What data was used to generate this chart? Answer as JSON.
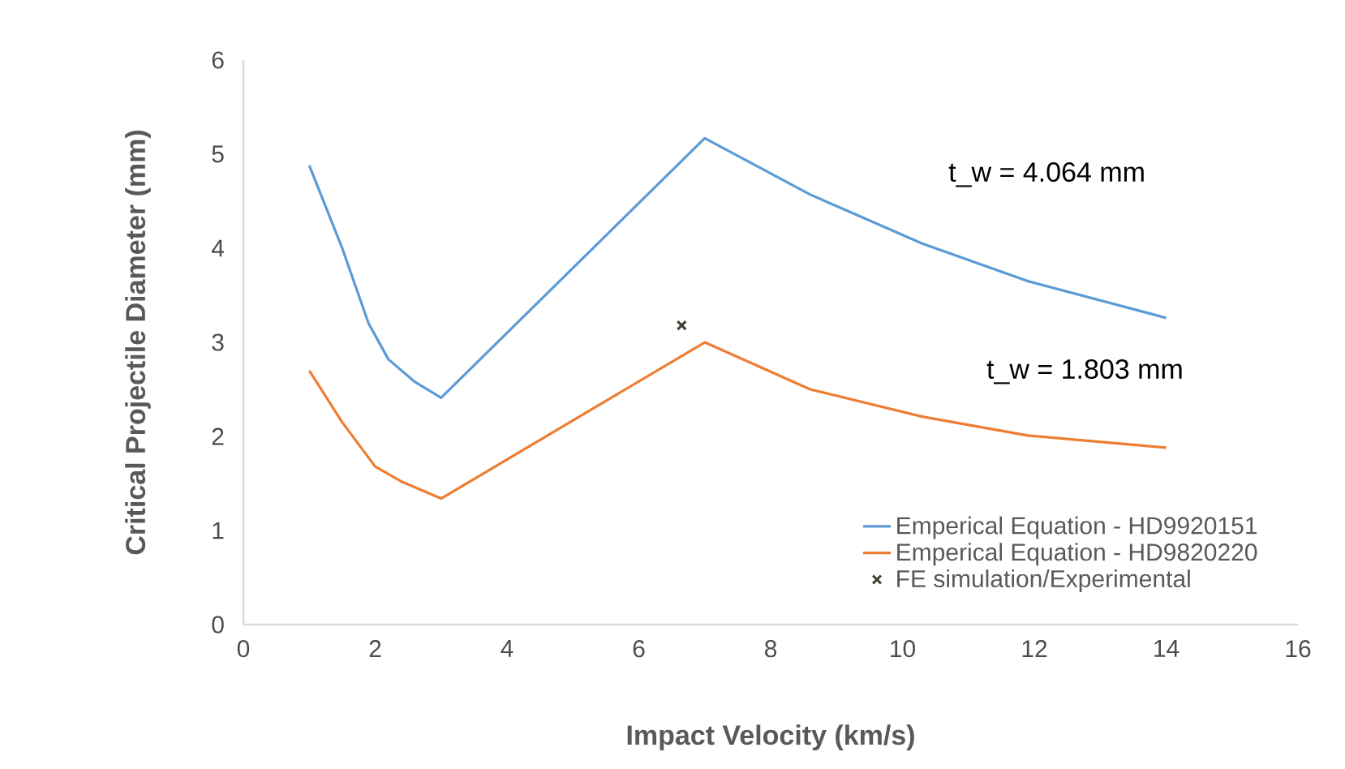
{
  "chart_data": {
    "type": "line",
    "xlabel": "Impact Velocity (km/s)",
    "ylabel": "Critical Projectile Diameter (mm)",
    "xlim": [
      0,
      16
    ],
    "xticks": [
      0,
      2,
      4,
      6,
      8,
      10,
      12,
      14,
      16
    ],
    "ylim": [
      0,
      6
    ],
    "yticks": [
      0,
      1,
      2,
      3,
      4,
      5,
      6
    ],
    "grid": false,
    "legend": "bottom right",
    "marker": "none",
    "line_style": "solid",
    "series": [
      {
        "name": "Emperical Equation - HD9920151",
        "color": "#5b9bd5",
        "x": [
          1,
          1.5,
          1.9,
          2.2,
          2.6,
          3,
          7,
          8.6,
          10.3,
          11.9,
          14
        ],
        "values": [
          4.88,
          4.0,
          3.2,
          2.82,
          2.58,
          2.41,
          5.17,
          4.57,
          4.05,
          3.65,
          3.26
        ]
      },
      {
        "name": "Emperical Equation - HD9820220",
        "color": "#ed7d31",
        "x": [
          1,
          1.5,
          2,
          2.4,
          3,
          7,
          8.6,
          10.3,
          11.9,
          14
        ],
        "values": [
          2.7,
          2.15,
          1.68,
          1.52,
          1.34,
          3.0,
          2.5,
          2.21,
          2.01,
          1.88
        ]
      },
      {
        "name": "FE simulation/Experimental",
        "type": "scatter",
        "marker": "cross",
        "color": "#3f3f2f",
        "x": [
          6.65
        ],
        "values": [
          3.18
        ]
      }
    ],
    "annotations": [
      "t_w = 4.064 mm",
      "t_w = 1.803 mm"
    ]
  }
}
